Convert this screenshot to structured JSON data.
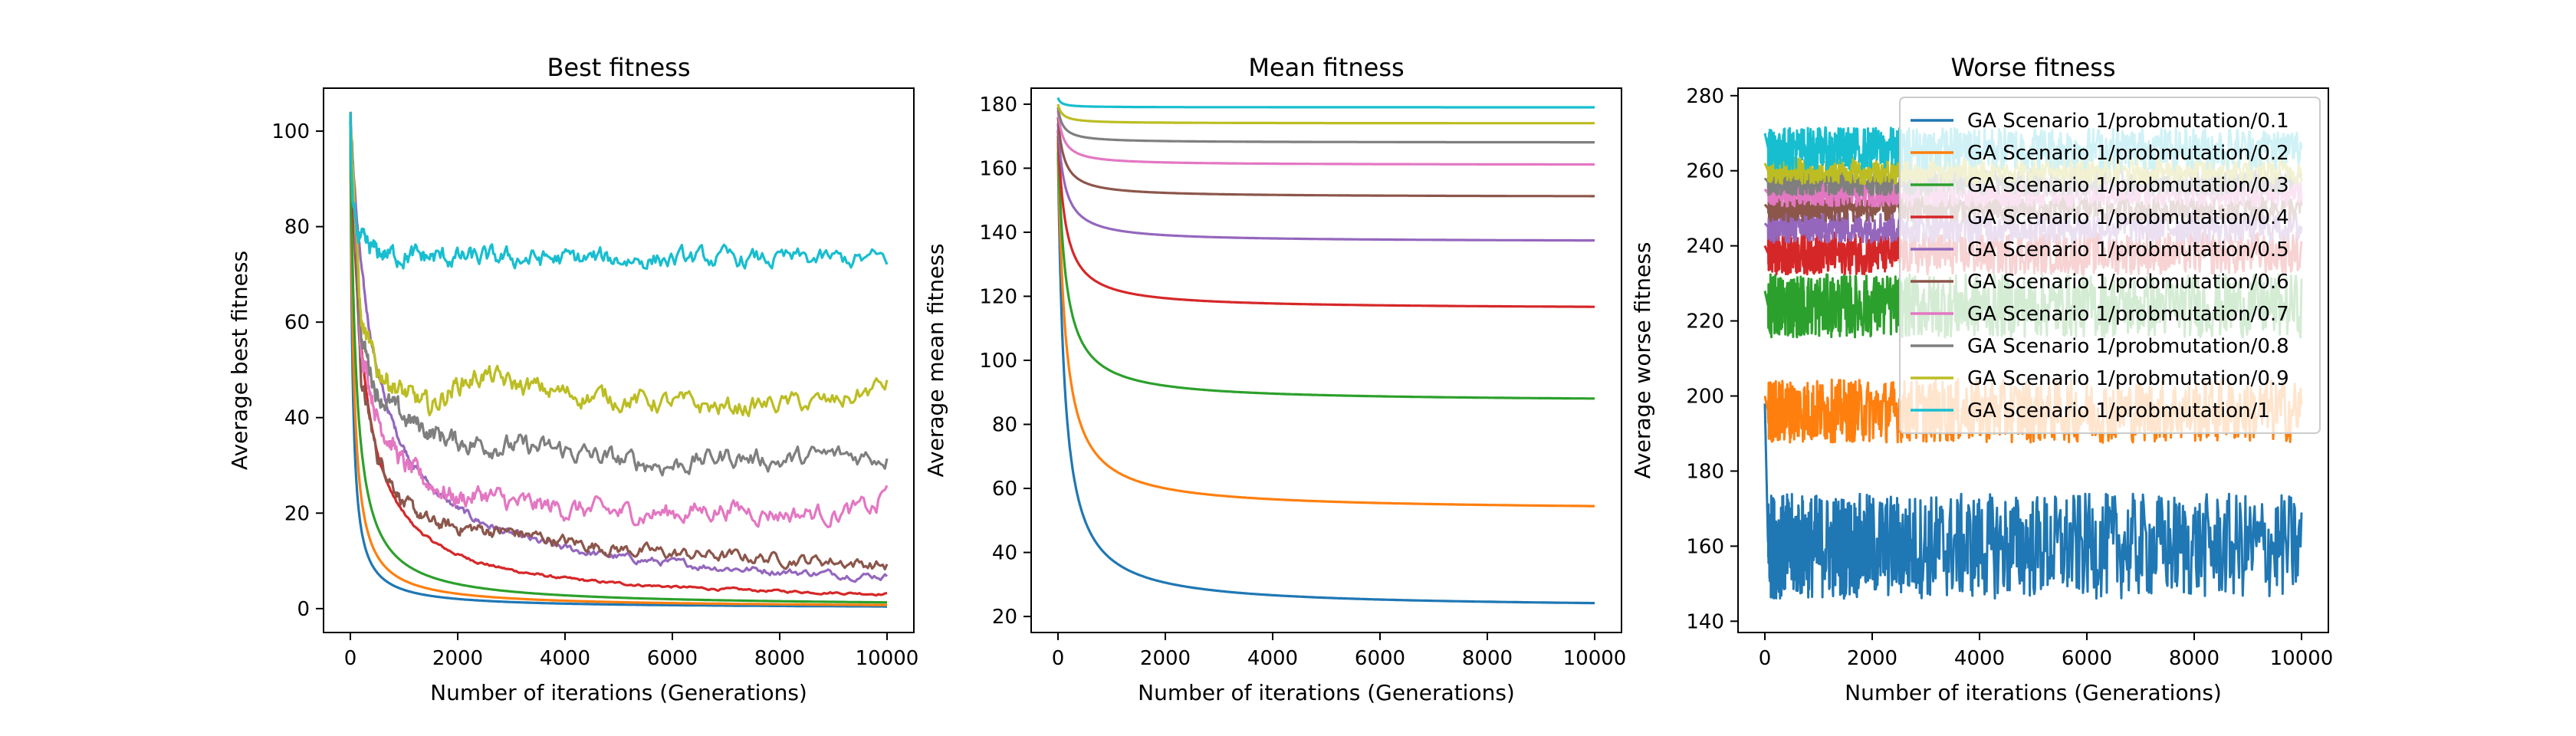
{
  "chart_data": [
    {
      "type": "line",
      "title": "Best fitness",
      "xlabel": "Number of iterations (Generations)",
      "ylabel": "Average best fitness",
      "xlim": [
        -500,
        10500
      ],
      "ylim": [
        -5,
        109
      ],
      "xticks": [
        0,
        2000,
        4000,
        6000,
        8000,
        10000
      ],
      "yticks": [
        0,
        20,
        40,
        60,
        80,
        100
      ],
      "grid": false,
      "series": [
        {
          "name": "GA Scenario 1/probmutation/0.1",
          "color": "#1f77b4",
          "start": 101,
          "floor": 0.05,
          "k": 40,
          "noise": 0,
          "values": []
        },
        {
          "name": "GA Scenario 1/probmutation/0.2",
          "color": "#ff7f0e",
          "start": 102,
          "floor": 0.15,
          "k": 60,
          "noise": 0,
          "values": []
        },
        {
          "name": "GA Scenario 1/probmutation/0.3",
          "color": "#2ca02c",
          "start": 102,
          "floor": 0.3,
          "k": 100,
          "noise": 0,
          "values": []
        },
        {
          "name": "GA Scenario 1/probmutation/0.4",
          "color": "#d62728",
          "start": 103,
          "floor": 0.8,
          "k": 230,
          "noise": 0.2,
          "values": []
        },
        {
          "name": "GA Scenario 1/probmutation/0.5",
          "color": "#9467bd",
          "start": 103,
          "floor": 2.5,
          "k": 450,
          "noise": 0.6,
          "values": []
        },
        {
          "name": "GA Scenario 1/probmutation/0.6",
          "color": "#8c564b",
          "start": 103,
          "floor": 8,
          "k": 700,
          "noise": 1.0,
          "values": [],
          "pts": [
            [
              200,
              48
            ],
            [
              500,
              32
            ],
            [
              1000,
              22
            ],
            [
              1500,
              18
            ],
            [
              2000,
              17
            ],
            [
              3000,
              16
            ],
            [
              4000,
              14
            ],
            [
              5000,
              12.5
            ],
            [
              6000,
              11.5
            ],
            [
              7000,
              11
            ],
            [
              8000,
              10.5
            ],
            [
              9000,
              10
            ],
            [
              10000,
              9
            ]
          ]
        },
        {
          "name": "GA Scenario 1/probmutation/0.7",
          "color": "#e377c2",
          "start": 103,
          "floor": 20,
          "k": 700,
          "noise": 1.6,
          "values": [],
          "pts": [
            [
              200,
              55
            ],
            [
              500,
              40
            ],
            [
              1000,
              30
            ],
            [
              1500,
              26
            ],
            [
              2000,
              23
            ],
            [
              2500,
              24
            ],
            [
              3000,
              22
            ],
            [
              4000,
              21
            ],
            [
              5000,
              20
            ],
            [
              6000,
              20
            ],
            [
              7000,
              21
            ],
            [
              8000,
              20
            ],
            [
              9000,
              20
            ],
            [
              9800,
              21
            ],
            [
              10000,
              26
            ]
          ]
        },
        {
          "name": "GA Scenario 1/probmutation/0.8",
          "color": "#7f7f7f",
          "start": 103,
          "floor": 31,
          "k": 700,
          "noise": 1.6,
          "values": [],
          "pts": [
            [
              200,
              57
            ],
            [
              500,
              45
            ],
            [
              1000,
              40
            ],
            [
              1500,
              37
            ],
            [
              2000,
              35
            ],
            [
              3000,
              34
            ],
            [
              4000,
              33
            ],
            [
              5000,
              31
            ],
            [
              6000,
              30
            ],
            [
              7000,
              32
            ],
            [
              8000,
              31
            ],
            [
              9000,
              32
            ],
            [
              10000,
              32
            ]
          ]
        },
        {
          "name": "GA Scenario 1/probmutation/0.9",
          "color": "#bcbd22",
          "start": 103,
          "floor": 44,
          "k": 700,
          "noise": 1.6,
          "values": [],
          "pts": [
            [
              200,
              60
            ],
            [
              500,
              50
            ],
            [
              1000,
              45
            ],
            [
              1500,
              42
            ],
            [
              2000,
              47
            ],
            [
              2500,
              49
            ],
            [
              3000,
              47
            ],
            [
              4000,
              45
            ],
            [
              5000,
              44
            ],
            [
              6000,
              43
            ],
            [
              7000,
              42
            ],
            [
              8000,
              43
            ],
            [
              9000,
              43
            ],
            [
              9500,
              45
            ],
            [
              10000,
              47
            ]
          ]
        },
        {
          "name": "GA Scenario 1/probmutation/1",
          "color": "#17becf",
          "start": 104,
          "floor": 73,
          "k": 30,
          "noise": 1.5,
          "values": []
        }
      ]
    },
    {
      "type": "line",
      "title": "Mean fitness",
      "xlabel": "Number of iterations (Generations)",
      "ylabel": "Average mean fitness",
      "xlim": [
        -500,
        10500
      ],
      "ylim": [
        15,
        185
      ],
      "xticks": [
        0,
        2000,
        4000,
        6000,
        8000,
        10000
      ],
      "yticks": [
        20,
        40,
        60,
        80,
        100,
        120,
        140,
        160,
        180
      ],
      "grid": false,
      "series": [
        {
          "name": "GA Scenario 1/probmutation/0.1",
          "color": "#1f77b4",
          "start": 165,
          "floor": 22.5,
          "k": 120,
          "noise": 0,
          "values": []
        },
        {
          "name": "GA Scenario 1/probmutation/0.2",
          "color": "#ff7f0e",
          "start": 168,
          "floor": 53,
          "k": 130,
          "noise": 0,
          "values": []
        },
        {
          "name": "GA Scenario 1/probmutation/0.3",
          "color": "#2ca02c",
          "start": 170,
          "floor": 87,
          "k": 130,
          "noise": 0,
          "values": []
        },
        {
          "name": "GA Scenario 1/probmutation/0.4",
          "color": "#d62728",
          "start": 172,
          "floor": 116,
          "k": 130,
          "noise": 0,
          "values": []
        },
        {
          "name": "GA Scenario 1/probmutation/0.5",
          "color": "#9467bd",
          "start": 174,
          "floor": 137,
          "k": 120,
          "noise": 0,
          "values": []
        },
        {
          "name": "GA Scenario 1/probmutation/0.6",
          "color": "#8c564b",
          "start": 176,
          "floor": 151,
          "k": 110,
          "noise": 0,
          "values": []
        },
        {
          "name": "GA Scenario 1/probmutation/0.7",
          "color": "#e377c2",
          "start": 178,
          "floor": 161,
          "k": 100,
          "noise": 0,
          "values": []
        },
        {
          "name": "GA Scenario 1/probmutation/0.8",
          "color": "#7f7f7f",
          "start": 179,
          "floor": 168,
          "k": 90,
          "noise": 0,
          "values": []
        },
        {
          "name": "GA Scenario 1/probmutation/0.9",
          "color": "#bcbd22",
          "start": 180,
          "floor": 174,
          "k": 80,
          "noise": 0,
          "values": []
        },
        {
          "name": "GA Scenario 1/probmutation/1",
          "color": "#17becf",
          "start": 182,
          "floor": 179,
          "k": 60,
          "noise": 0,
          "values": []
        }
      ]
    },
    {
      "type": "line",
      "title": "Worse fitness",
      "xlabel": "Number of iterations (Generations)",
      "ylabel": "Average worse fitness",
      "xlim": [
        -500,
        10500
      ],
      "ylim": [
        137,
        282
      ],
      "xticks": [
        0,
        2000,
        4000,
        6000,
        8000,
        10000
      ],
      "yticks": [
        140,
        160,
        180,
        200,
        220,
        240,
        260,
        280
      ],
      "grid": false,
      "legend": "top-right",
      "series": [
        {
          "name": "GA Scenario 1/probmutation/0.1",
          "color": "#1f77b4",
          "center": 160,
          "band": 10,
          "start": 198,
          "values": []
        },
        {
          "name": "GA Scenario 1/probmutation/0.2",
          "color": "#ff7f0e",
          "center": 196,
          "band": 6,
          "start": 200,
          "values": []
        },
        {
          "name": "GA Scenario 1/probmutation/0.3",
          "color": "#2ca02c",
          "center": 224,
          "band": 6,
          "start": 228,
          "values": []
        },
        {
          "name": "GA Scenario 1/probmutation/0.4",
          "color": "#d62728",
          "center": 238,
          "band": 4,
          "start": 240,
          "values": []
        },
        {
          "name": "GA Scenario 1/probmutation/0.5",
          "color": "#9467bd",
          "center": 245,
          "band": 3,
          "start": 246,
          "values": []
        },
        {
          "name": "GA Scenario 1/probmutation/0.6",
          "color": "#8c564b",
          "center": 250,
          "band": 2.5,
          "start": 251,
          "values": []
        },
        {
          "name": "GA Scenario 1/probmutation/0.7",
          "color": "#e377c2",
          "center": 254,
          "band": 2.5,
          "start": 255,
          "values": []
        },
        {
          "name": "GA Scenario 1/probmutation/0.8",
          "color": "#7f7f7f",
          "center": 257,
          "band": 2.5,
          "start": 258,
          "values": []
        },
        {
          "name": "GA Scenario 1/probmutation/0.9",
          "color": "#bcbd22",
          "center": 260,
          "band": 2.5,
          "start": 262,
          "values": []
        },
        {
          "name": "GA Scenario 1/probmutation/1",
          "color": "#17becf",
          "center": 266,
          "band": 4,
          "start": 270,
          "values": []
        }
      ]
    }
  ]
}
